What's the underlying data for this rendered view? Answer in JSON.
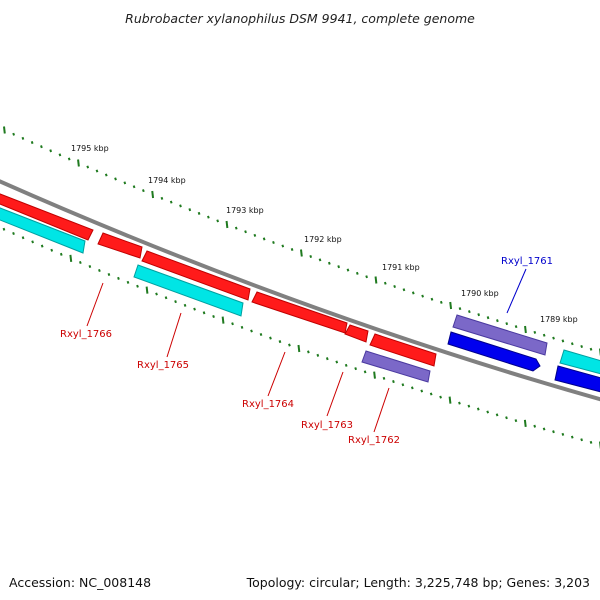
{
  "title": "Rubrobacter xylanophilus DSM 9941, complete genome",
  "accession": "Accession: NC_008148",
  "summary": "Topology: circular; Length: 3,225,748 bp; Genes: 3,203",
  "ticks": [
    "1795 kbp",
    "1794 kbp",
    "1793 kbp",
    "1792 kbp",
    "1791 kbp",
    "1790 kbp",
    "1789 kbp"
  ],
  "genes": [
    {
      "label": "Rxyl_1766",
      "color": "#cc0000"
    },
    {
      "label": "Rxyl_1765",
      "color": "#cc0000"
    },
    {
      "label": "Rxyl_1764",
      "color": "#cc0000"
    },
    {
      "label": "Rxyl_1763",
      "color": "#cc0000"
    },
    {
      "label": "Rxyl_1762",
      "color": "#cc0000"
    },
    {
      "label": "Rxyl_1761",
      "color": "#0000cc"
    }
  ],
  "colors": {
    "backbone": "#808080",
    "ruler": "#1f7a1f",
    "gene_reverse": "#ff1a1a",
    "cds_cyan": "#00e5e5",
    "gene_forward": "#0000ee",
    "cds_purple": "#7b68c8"
  }
}
